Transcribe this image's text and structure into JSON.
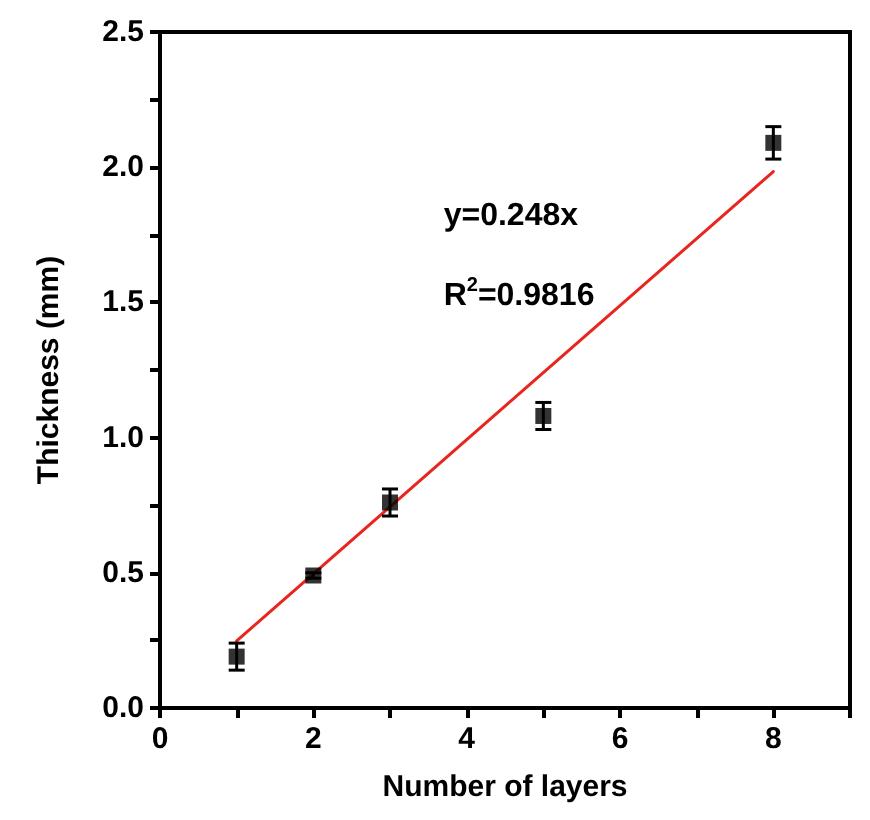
{
  "chart_data": {
    "type": "scatter",
    "xlabel": "Number of layers",
    "ylabel": "Thickness (mm)",
    "x": [
      1,
      2,
      3,
      5,
      8
    ],
    "series": [
      {
        "color": "#000000",
        "values": [
          0.19,
          0.49,
          0.76,
          1.08,
          2.09
        ],
        "errors": [
          0.05,
          0.01,
          0.05,
          0.05,
          0.06
        ],
        "marker": "square"
      },
      {
        "type": "line",
        "color": "#e8251f",
        "x": [
          1,
          8
        ],
        "values": [
          0.248,
          1.984
        ],
        "marker": "none",
        "line_style": "solid"
      }
    ],
    "annotations": [
      "y=0.248x",
      "R$^{2}$=0.9816"
    ],
    "xlim": [
      0,
      9
    ],
    "xticks": [
      0,
      {
        "value": 1,
        "label": null
      },
      2,
      {
        "value": 3,
        "label": null
      },
      4,
      {
        "value": 5,
        "label": null
      },
      6,
      {
        "value": 7,
        "label": null
      },
      8,
      {
        "value": 9,
        "label": null
      }
    ],
    "ylim": [
      0,
      2.5
    ],
    "yticks": [
      {
        "value": 0,
        "label": "0.0"
      },
      {
        "value": 0.25,
        "label": null
      },
      {
        "value": 0.5,
        "label": "0.5"
      },
      {
        "value": 0.75,
        "label": null
      },
      {
        "value": 1,
        "label": "1.0"
      },
      {
        "value": 1.25,
        "label": null
      },
      {
        "value": 1.5,
        "label": "1.5"
      },
      {
        "value": 1.75,
        "label": null
      },
      {
        "value": 2,
        "label": "2.0"
      },
      {
        "value": 2.25,
        "label": null
      },
      {
        "value": 2.5,
        "label": "2.5"
      }
    ],
    "grid": false
  }
}
